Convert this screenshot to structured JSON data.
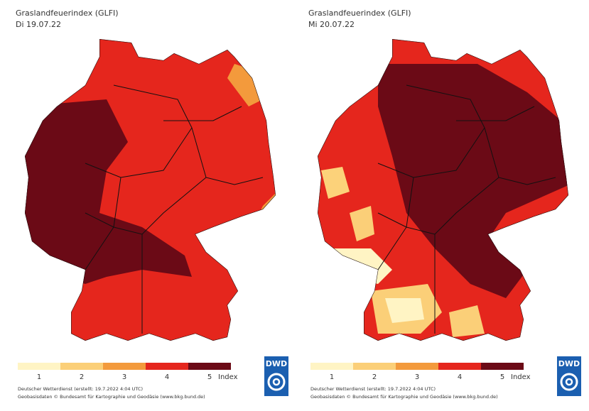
{
  "panels": [
    {
      "title": "Graslandfeuerindex (GLFI)",
      "date": "Di 19.07.22",
      "legend": {
        "labels": [
          "1",
          "2",
          "3",
          "4",
          "5"
        ],
        "unit": "Index",
        "colors": [
          "#fff4c4",
          "#fbcf78",
          "#f39a3c",
          "#e5261d",
          "#6b0a16"
        ]
      },
      "footer": [
        "Deutscher Wetterdienst (erstellt: 19.7.2022 4:04 UTC)",
        "Geobasisdaten © Bundesamt für Kartographie und Geodäsie (www.bkg.bund.de)"
      ],
      "logo": "DWD"
    },
    {
      "title": "Graslandfeuerindex (GLFI)",
      "date": "Mi 20.07.22",
      "legend": {
        "labels": [
          "1",
          "2",
          "3",
          "4",
          "5"
        ],
        "unit": "Index",
        "colors": [
          "#fff4c4",
          "#fbcf78",
          "#f39a3c",
          "#e5261d",
          "#6b0a16"
        ]
      },
      "footer": [
        "Deutscher Wetterdienst (erstellt: 19.7.2022 4:04 UTC)",
        "Geobasisdaten © Bundesamt für Kartographie und Geodäsie (www.bkg.bund.de)"
      ],
      "logo": "DWD"
    }
  ]
}
